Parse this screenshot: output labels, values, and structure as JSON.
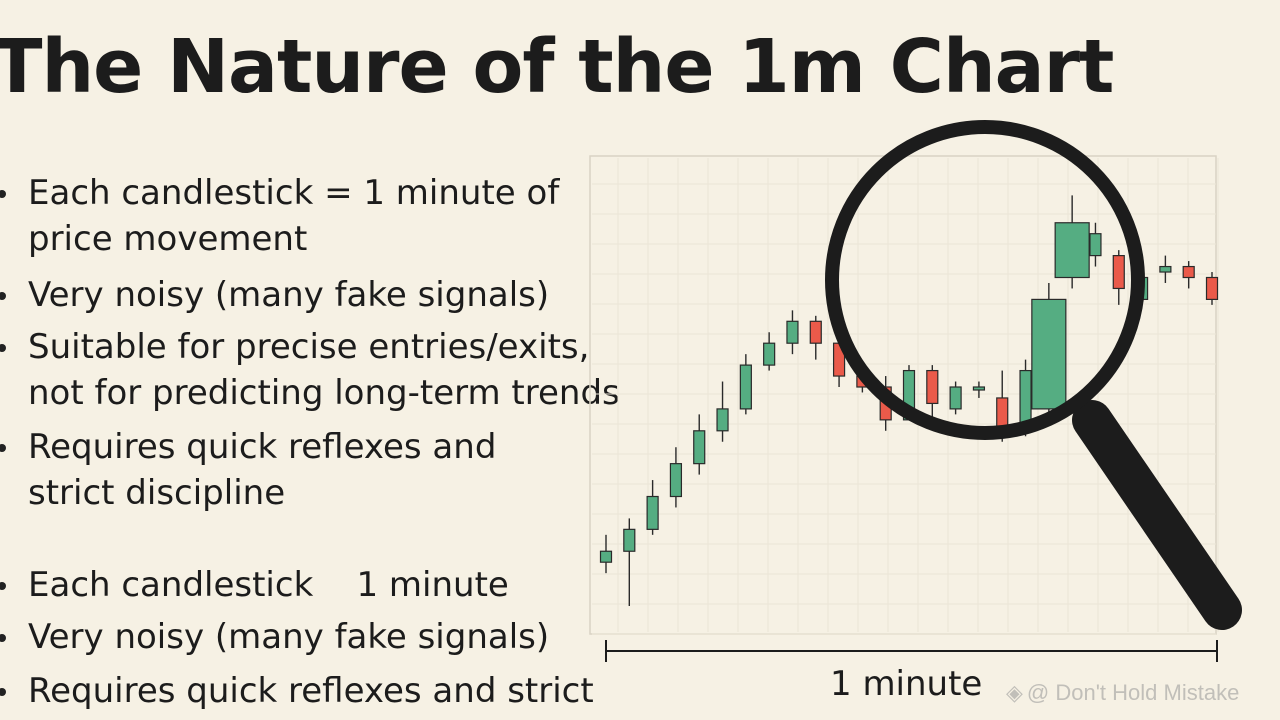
{
  "title": "The Nature of the 1m Chart",
  "bullets": [
    {
      "lines": [
        "Each candlestick = 1 minute of",
        "price movement"
      ]
    },
    {
      "lines": [
        "Very noisy (many fake signals)"
      ]
    },
    {
      "lines": [
        "Suitable for precise entries/exits,",
        "not for predicting long-term trends"
      ]
    },
    {
      "lines": [
        "Requires quick reflexes and",
        "strict discipline"
      ]
    },
    {
      "lines": [
        "Each candlestick    1 minute"
      ]
    },
    {
      "lines": [
        "Very noisy (many fake signals)"
      ]
    },
    {
      "lines": [
        "Requires quick reflexes and strict"
      ]
    }
  ],
  "x_axis_label": "1 minute",
  "watermark": {
    "text": "@ Don't Hold Mistake",
    "icon": "diamond-logo-icon"
  },
  "colors": {
    "bull": "#55ad82",
    "bear": "#ea5a4a",
    "ink": "#1c1c1c",
    "background": "#f6f1e4"
  },
  "chart_data": {
    "type": "candlestick",
    "candles": [
      {
        "o": 8,
        "c": 10,
        "h": 13,
        "l": 6
      },
      {
        "o": 10,
        "c": 14,
        "h": 16,
        "l": 0
      },
      {
        "o": 14,
        "c": 20,
        "h": 23,
        "l": 13
      },
      {
        "o": 20,
        "c": 26,
        "h": 29,
        "l": 18
      },
      {
        "o": 26,
        "c": 32,
        "h": 35,
        "l": 24
      },
      {
        "o": 32,
        "c": 36,
        "h": 41,
        "l": 30
      },
      {
        "o": 36,
        "c": 44,
        "h": 46,
        "l": 35
      },
      {
        "o": 44,
        "c": 48,
        "h": 50,
        "l": 43
      },
      {
        "o": 48,
        "c": 52,
        "h": 54,
        "l": 46
      },
      {
        "o": 52,
        "c": 48,
        "h": 53,
        "l": 45
      },
      {
        "o": 48,
        "c": 42,
        "h": 49,
        "l": 40
      },
      {
        "o": 42,
        "c": 40,
        "h": 43,
        "l": 39
      },
      {
        "o": 40,
        "c": 34,
        "h": 42,
        "l": 32
      },
      {
        "o": 34,
        "c": 43,
        "h": 44,
        "l": 34
      },
      {
        "o": 43,
        "c": 37,
        "h": 44,
        "l": 34
      },
      {
        "o": 36,
        "c": 40,
        "h": 41,
        "l": 35
      },
      {
        "o": 40,
        "c": 40,
        "h": 41,
        "l": 38
      },
      {
        "o": 38,
        "c": 32,
        "h": 43,
        "l": 30
      },
      {
        "o": 32,
        "c": 43,
        "h": 45,
        "l": 31
      },
      {
        "o": 36,
        "c": 56,
        "h": 59,
        "l": 35
      },
      {
        "o": 60,
        "c": 70,
        "h": 75,
        "l": 58
      },
      {
        "o": 64,
        "c": 68,
        "h": 70,
        "l": 62
      },
      {
        "o": 64,
        "c": 58,
        "h": 65,
        "l": 55
      },
      {
        "o": 56,
        "c": 60,
        "h": 64,
        "l": 55
      },
      {
        "o": 61,
        "c": 62,
        "h": 64,
        "l": 59
      },
      {
        "o": 62,
        "c": 60,
        "h": 63,
        "l": 58
      },
      {
        "o": 60,
        "c": 56,
        "h": 61,
        "l": 55
      }
    ],
    "ylim": [
      0,
      80
    ],
    "grid": true,
    "xlabel": "1 minute",
    "magnified_candles": [
      19,
      20
    ]
  }
}
